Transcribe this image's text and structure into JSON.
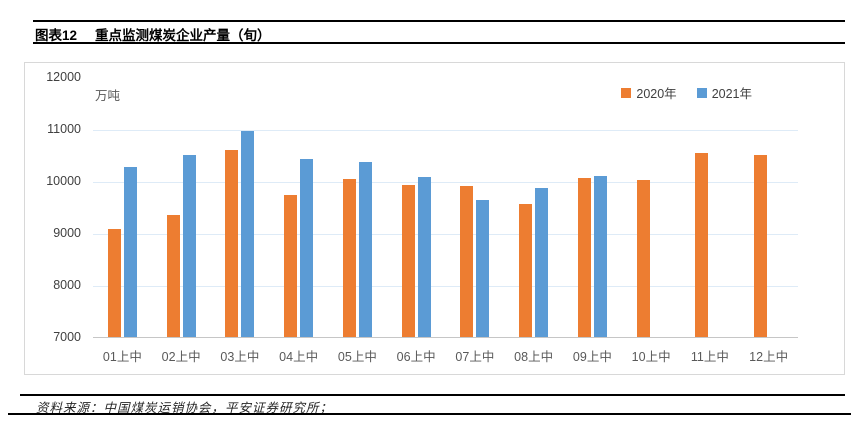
{
  "header": {
    "figure_label": "图表12",
    "title": "重点监测煤炭企业产量（旬）"
  },
  "chart_data": {
    "type": "bar",
    "title": "重点监测煤炭企业产量（旬）",
    "unit_label": "万吨",
    "categories": [
      "01上中",
      "02上中",
      "03上中",
      "04上中",
      "05上中",
      "06上中",
      "07上中",
      "08上中",
      "09上中",
      "10上中",
      "11上中",
      "12上中"
    ],
    "series": [
      {
        "name": "2020年",
        "color": "#ED7D31",
        "values": [
          9070,
          9350,
          10590,
          9730,
          10040,
          9920,
          9900,
          9560,
          10050,
          10010,
          10540,
          10500
        ]
      },
      {
        "name": "2021年",
        "color": "#5B9BD5",
        "values": [
          10260,
          10500,
          10970,
          10430,
          10360,
          10080,
          9640,
          9860,
          10090,
          null,
          null,
          null
        ]
      }
    ],
    "ylim": [
      7000,
      12000
    ],
    "yticks": [
      12000,
      11000,
      10000,
      9000,
      8000,
      7000
    ],
    "grid": true,
    "gridline_color": "#DEEBF7",
    "axis_line_color": "#C6C6C6",
    "legend_position": "top-right"
  },
  "source": {
    "text": "资料来源：中国煤炭运销协会，平安证券研究所；"
  }
}
